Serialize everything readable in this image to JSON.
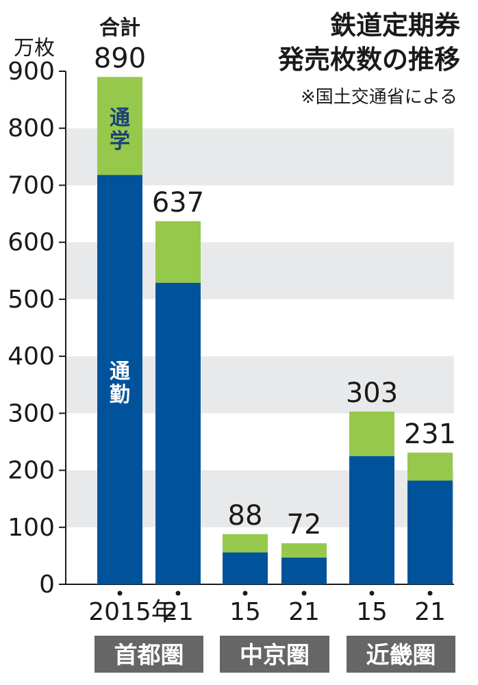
{
  "chart_data": {
    "type": "bar",
    "stacked": true,
    "title_lines": [
      "鉄道定期券",
      "発売枚数の推移"
    ],
    "source": "※国土交通省による",
    "unit": "万枚",
    "total_caption": "合計",
    "ylim": [
      0,
      900
    ],
    "yticks": [
      "0",
      "100",
      "200",
      "300",
      "400",
      "500",
      "600",
      "700",
      "800",
      "900"
    ],
    "grid": "alternating-bands",
    "categories": [
      "2015年",
      "21",
      "15",
      "21",
      "15",
      "21"
    ],
    "groups": [
      {
        "label": "首都圏",
        "members": [
          0,
          1
        ]
      },
      {
        "label": "中京圏",
        "members": [
          2,
          3
        ]
      },
      {
        "label": "近畿圏",
        "members": [
          4,
          5
        ]
      }
    ],
    "series": [
      {
        "name": "通勤",
        "values": [
          718,
          529,
          56,
          47,
          225,
          182
        ]
      },
      {
        "name": "通学",
        "values": [
          172,
          108,
          32,
          25,
          78,
          49
        ]
      }
    ],
    "totals": [
      "890",
      "637",
      "88",
      "72",
      "303",
      "231"
    ],
    "colors": {
      "commute": "#00539b",
      "school": "#96c84b",
      "band": "#e8e9ea",
      "region_box": "#666666",
      "text": "#1a1a1a"
    }
  }
}
